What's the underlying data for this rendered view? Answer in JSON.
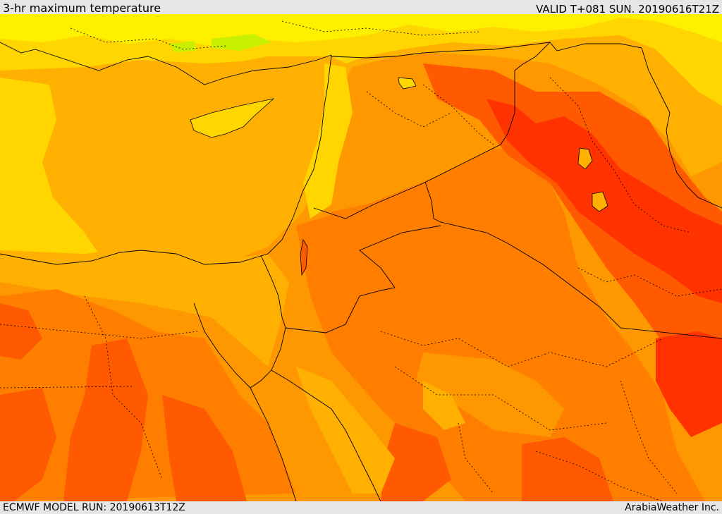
{
  "header": {
    "title": "3-hr maximum temperature",
    "valid": "VALID T+081 SUN. 20190616T21Z"
  },
  "footer": {
    "model_run": "ECMWF MODEL RUN: 20190613T12Z",
    "credit": "ArabiaWeather Inc."
  },
  "colors": {
    "cool_yellow": "#fff000",
    "yellow": "#ffd600",
    "gold": "#ffb000",
    "light_orange": "#ff9800",
    "orange": "#ff7e00",
    "dark_orange": "#ff5a00",
    "red_orange": "#ff3200",
    "green_yellow": "#c8f000",
    "borders": "#000000"
  }
}
